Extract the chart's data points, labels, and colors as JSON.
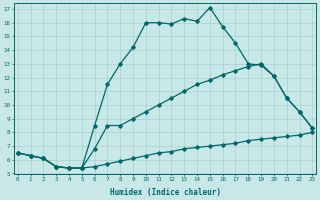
{
  "xlabel": "Humidex (Indice chaleur)",
  "bg_color": "#c8e8e8",
  "line_color": "#006868",
  "grid_color": "#a8d0d0",
  "xticks": [
    0,
    1,
    2,
    3,
    4,
    5,
    6,
    7,
    8,
    9,
    10,
    11,
    12,
    13,
    14,
    15,
    16,
    17,
    18,
    19,
    20,
    21,
    22,
    23
  ],
  "yticks": [
    5,
    6,
    7,
    8,
    9,
    10,
    11,
    12,
    13,
    14,
    15,
    16,
    17
  ],
  "line1_x": [
    0,
    1,
    2,
    3,
    4,
    5,
    6,
    7,
    8,
    9,
    10,
    11,
    12,
    13,
    14,
    15,
    16,
    17,
    18,
    19,
    20,
    21,
    22,
    23
  ],
  "line1_y": [
    6.5,
    6.3,
    6.1,
    5.5,
    5.4,
    5.4,
    5.5,
    5.7,
    5.9,
    6.1,
    6.3,
    6.5,
    6.6,
    6.8,
    6.9,
    7.0,
    7.1,
    7.2,
    7.4,
    7.5,
    7.6,
    7.7,
    7.8,
    8.0
  ],
  "line2_x": [
    0,
    1,
    2,
    3,
    4,
    5,
    6,
    7,
    8,
    9,
    10,
    11,
    12,
    13,
    14,
    15,
    16,
    17,
    18,
    19,
    20,
    21,
    22,
    23
  ],
  "line2_y": [
    6.5,
    6.3,
    6.1,
    5.5,
    5.4,
    5.4,
    6.8,
    8.5,
    8.5,
    9.0,
    9.5,
    10.0,
    10.5,
    11.0,
    11.5,
    11.8,
    12.2,
    12.5,
    12.8,
    13.0,
    12.1,
    10.5,
    9.5,
    8.3
  ],
  "line3_x": [
    0,
    1,
    2,
    3,
    4,
    5,
    6,
    7,
    8,
    9,
    10,
    11,
    12,
    13,
    14,
    15,
    16,
    17,
    18,
    19,
    20,
    21,
    22,
    23
  ],
  "line3_y": [
    6.5,
    6.3,
    6.1,
    5.5,
    5.4,
    5.4,
    8.5,
    11.5,
    13.0,
    14.2,
    16.0,
    16.0,
    15.9,
    16.3,
    16.1,
    17.1,
    15.7,
    14.5,
    13.0,
    12.9,
    12.1,
    10.5,
    9.5,
    8.3
  ]
}
